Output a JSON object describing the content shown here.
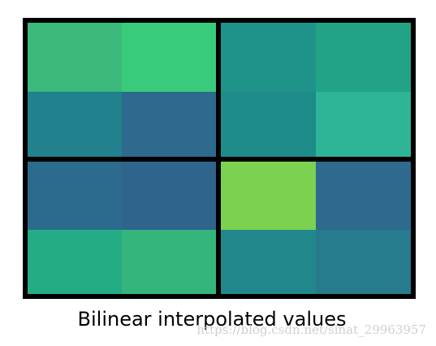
{
  "grid": {
    "rows": [
      [
        "#3ab97a",
        "#38cb7b",
        "#1f928a",
        "#22a386"
      ],
      [
        "#21818c",
        "#2d6a8d",
        "#1e8c88",
        "#2db595"
      ],
      [
        "#2c6b8d",
        "#2f648d",
        "#7bd250",
        "#2d6a8d"
      ],
      [
        "#24ad84",
        "#34b57b",
        "#22878b",
        "#267c8d"
      ]
    ]
  },
  "caption": "Bilinear interpolated values",
  "watermark": "https://blog.csdn.net/sinat_29963957"
}
